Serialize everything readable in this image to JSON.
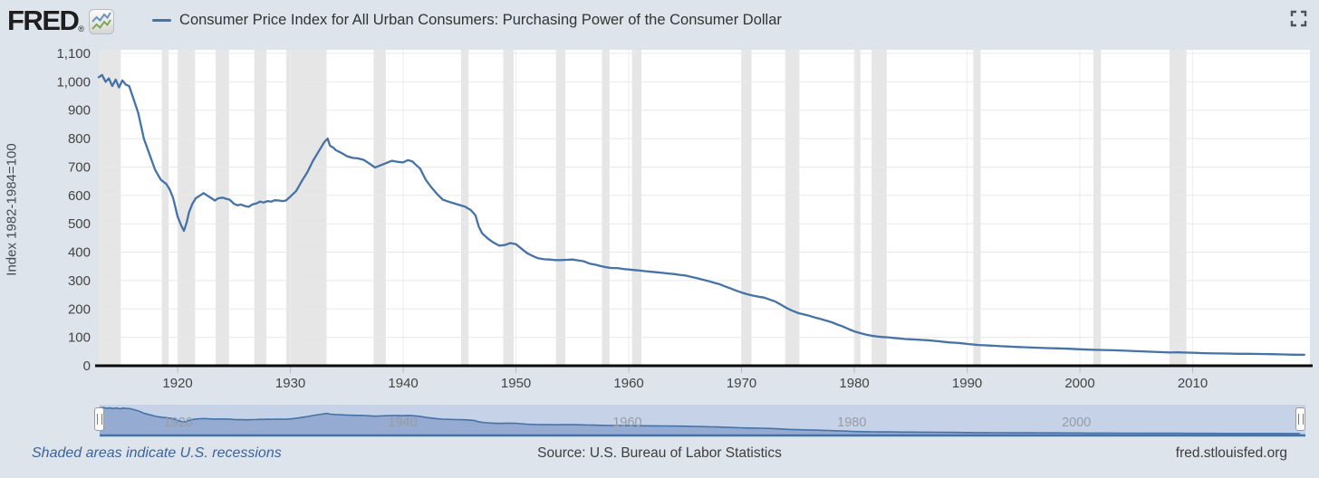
{
  "header": {
    "logo_text": "FRED",
    "registered_mark": "®",
    "title": "Consumer Price Index for All Urban Consumers: Purchasing Power of the Consumer Dollar"
  },
  "footer": {
    "note": "Shaded areas indicate U.S. recessions",
    "source": "Source: U.S. Bureau of Labor Statistics",
    "site": "fred.stlouisfed.org"
  },
  "chart_data": {
    "type": "line",
    "title": "Consumer Price Index for All Urban Consumers: Purchasing Power of the Consumer Dollar",
    "xlabel": "",
    "ylabel": "Index 1982-1984=100",
    "xlim": [
      1913,
      2020.4
    ],
    "ylim": [
      0,
      1100
    ],
    "grid": true,
    "legend_position": "top",
    "x_ticks": [
      1920,
      1930,
      1940,
      1950,
      1960,
      1970,
      1980,
      1990,
      2000,
      2010
    ],
    "y_ticks": [
      0,
      100,
      200,
      300,
      400,
      500,
      600,
      700,
      800,
      900,
      1000,
      1100
    ],
    "y_tick_labels": [
      "0",
      "100",
      "200",
      "300",
      "400",
      "500",
      "600",
      "700",
      "800",
      "900",
      "1,000",
      "1,100"
    ],
    "colors": {
      "line": "#4572a7",
      "recession": "#e6e6e6",
      "plot_bg": "#ffffff",
      "page_bg": "#dde4ec",
      "zero_line": "#0a0a0a",
      "h_grid": "#e8e8e8",
      "v_grid": "#ededed",
      "tick_text": "#444444",
      "slider_track": "#c5d2e8",
      "slider_area": "#8fa6cf",
      "slider_line": "#4572a7",
      "link_blue": "#3d6399"
    },
    "recessions": [
      [
        1913.0,
        1914.95
      ],
      [
        1918.6,
        1919.2
      ],
      [
        1920.04,
        1921.55
      ],
      [
        1923.37,
        1924.55
      ],
      [
        1926.79,
        1927.87
      ],
      [
        1929.62,
        1933.2
      ],
      [
        1937.37,
        1938.45
      ],
      [
        1945.12,
        1945.79
      ],
      [
        1948.87,
        1949.79
      ],
      [
        1953.54,
        1954.37
      ],
      [
        1957.62,
        1958.29
      ],
      [
        1960.29,
        1961.12
      ],
      [
        1969.95,
        1970.87
      ],
      [
        1973.87,
        1975.12
      ],
      [
        1980.04,
        1980.54
      ],
      [
        1981.54,
        1982.87
      ],
      [
        1990.54,
        1991.2
      ],
      [
        2001.2,
        2001.87
      ],
      [
        2007.95,
        2009.45
      ]
    ],
    "series": [
      {
        "name": "Consumer Price Index for All Urban Consumers: Purchasing Power of the Consumer Dollar",
        "points": [
          [
            1913,
            1016
          ],
          [
            1913.3,
            1024
          ],
          [
            1913.6,
            1000
          ],
          [
            1913.9,
            1012
          ],
          [
            1914.2,
            985
          ],
          [
            1914.5,
            1008
          ],
          [
            1914.8,
            980
          ],
          [
            1915.1,
            1005
          ],
          [
            1915.4,
            990
          ],
          [
            1915.7,
            985
          ],
          [
            1916,
            950
          ],
          [
            1916.5,
            890
          ],
          [
            1917,
            800
          ],
          [
            1917.5,
            745
          ],
          [
            1918,
            690
          ],
          [
            1918.5,
            655
          ],
          [
            1919,
            640
          ],
          [
            1919.3,
            620
          ],
          [
            1919.6,
            590
          ],
          [
            1920,
            525
          ],
          [
            1920.3,
            495
          ],
          [
            1920.55,
            475
          ],
          [
            1920.8,
            505
          ],
          [
            1921,
            540
          ],
          [
            1921.3,
            570
          ],
          [
            1921.6,
            590
          ],
          [
            1922,
            600
          ],
          [
            1922.3,
            608
          ],
          [
            1922.6,
            600
          ],
          [
            1923,
            590
          ],
          [
            1923.3,
            582
          ],
          [
            1923.6,
            590
          ],
          [
            1924,
            592
          ],
          [
            1924.3,
            588
          ],
          [
            1924.6,
            585
          ],
          [
            1925,
            570
          ],
          [
            1925.3,
            565
          ],
          [
            1925.6,
            568
          ],
          [
            1926,
            562
          ],
          [
            1926.3,
            560
          ],
          [
            1926.6,
            568
          ],
          [
            1927,
            572
          ],
          [
            1927.3,
            578
          ],
          [
            1927.6,
            575
          ],
          [
            1928,
            580
          ],
          [
            1928.3,
            578
          ],
          [
            1928.6,
            583
          ],
          [
            1929,
            582
          ],
          [
            1929.3,
            580
          ],
          [
            1929.6,
            582
          ],
          [
            1930,
            596
          ],
          [
            1930.5,
            615
          ],
          [
            1931,
            650
          ],
          [
            1931.5,
            682
          ],
          [
            1932,
            722
          ],
          [
            1932.5,
            755
          ],
          [
            1933,
            788
          ],
          [
            1933.3,
            800
          ],
          [
            1933.5,
            775
          ],
          [
            1933.8,
            768
          ],
          [
            1934,
            760
          ],
          [
            1934.5,
            750
          ],
          [
            1935,
            738
          ],
          [
            1935.5,
            732
          ],
          [
            1936,
            730
          ],
          [
            1936.5,
            725
          ],
          [
            1937,
            712
          ],
          [
            1937.5,
            698
          ],
          [
            1938,
            706
          ],
          [
            1938.5,
            714
          ],
          [
            1939,
            722
          ],
          [
            1939.5,
            718
          ],
          [
            1940,
            716
          ],
          [
            1940.4,
            724
          ],
          [
            1940.8,
            720
          ],
          [
            1941,
            712
          ],
          [
            1941.5,
            694
          ],
          [
            1942,
            655
          ],
          [
            1942.5,
            628
          ],
          [
            1943,
            605
          ],
          [
            1943.5,
            585
          ],
          [
            1944,
            578
          ],
          [
            1944.5,
            572
          ],
          [
            1945,
            566
          ],
          [
            1945.5,
            560
          ],
          [
            1946,
            548
          ],
          [
            1946.4,
            530
          ],
          [
            1946.7,
            490
          ],
          [
            1947,
            466
          ],
          [
            1947.5,
            448
          ],
          [
            1948,
            434
          ],
          [
            1948.5,
            423
          ],
          [
            1949,
            425
          ],
          [
            1949.5,
            432
          ],
          [
            1950,
            428
          ],
          [
            1950.5,
            412
          ],
          [
            1951,
            396
          ],
          [
            1951.5,
            386
          ],
          [
            1952,
            378
          ],
          [
            1952.5,
            375
          ],
          [
            1953,
            374
          ],
          [
            1953.5,
            372
          ],
          [
            1954,
            372
          ],
          [
            1954.5,
            373
          ],
          [
            1955,
            374
          ],
          [
            1955.5,
            371
          ],
          [
            1956,
            368
          ],
          [
            1956.5,
            360
          ],
          [
            1957,
            356
          ],
          [
            1957.5,
            351
          ],
          [
            1958,
            347
          ],
          [
            1958.5,
            344
          ],
          [
            1959,
            344
          ],
          [
            1959.5,
            341
          ],
          [
            1960,
            339
          ],
          [
            1960.5,
            337
          ],
          [
            1961,
            335
          ],
          [
            1961.5,
            333
          ],
          [
            1962,
            331
          ],
          [
            1962.5,
            329
          ],
          [
            1963,
            327
          ],
          [
            1963.5,
            325
          ],
          [
            1964,
            323
          ],
          [
            1964.5,
            320
          ],
          [
            1965,
            318
          ],
          [
            1965.5,
            313
          ],
          [
            1966,
            309
          ],
          [
            1966.5,
            304
          ],
          [
            1967,
            299
          ],
          [
            1967.5,
            293
          ],
          [
            1968,
            288
          ],
          [
            1968.5,
            280
          ],
          [
            1969,
            273
          ],
          [
            1969.5,
            265
          ],
          [
            1970,
            258
          ],
          [
            1970.5,
            252
          ],
          [
            1971,
            247
          ],
          [
            1971.5,
            243
          ],
          [
            1972,
            240
          ],
          [
            1972.5,
            233
          ],
          [
            1973,
            226
          ],
          [
            1973.5,
            215
          ],
          [
            1974,
            203
          ],
          [
            1974.5,
            194
          ],
          [
            1975,
            186
          ],
          [
            1975.5,
            181
          ],
          [
            1976,
            176
          ],
          [
            1976.5,
            170
          ],
          [
            1977,
            165
          ],
          [
            1977.5,
            159
          ],
          [
            1978,
            153
          ],
          [
            1978.5,
            145
          ],
          [
            1979,
            138
          ],
          [
            1979.5,
            129
          ],
          [
            1980,
            121
          ],
          [
            1980.5,
            115
          ],
          [
            1981,
            110
          ],
          [
            1981.5,
            106
          ],
          [
            1982,
            103
          ],
          [
            1982.5,
            101
          ],
          [
            1983,
            100
          ],
          [
            1983.5,
            98
          ],
          [
            1984,
            96
          ],
          [
            1984.5,
            94
          ],
          [
            1985,
            93
          ],
          [
            1985.5,
            92
          ],
          [
            1986,
            91
          ],
          [
            1986.5,
            90
          ],
          [
            1987,
            88
          ],
          [
            1987.5,
            86
          ],
          [
            1988,
            84
          ],
          [
            1988.5,
            82
          ],
          [
            1989,
            81
          ],
          [
            1989.5,
            79
          ],
          [
            1990,
            77
          ],
          [
            1990.5,
            75
          ],
          [
            1991,
            73
          ],
          [
            1991.5,
            72
          ],
          [
            1992,
            71
          ],
          [
            1992.5,
            70
          ],
          [
            1993,
            69
          ],
          [
            1993.5,
            68
          ],
          [
            1994,
            67
          ],
          [
            1994.5,
            66
          ],
          [
            1995,
            65.5
          ],
          [
            1996,
            63.7
          ],
          [
            1997,
            62.2
          ],
          [
            1998,
            61.3
          ],
          [
            1999,
            60.1
          ],
          [
            2000,
            58.1
          ],
          [
            2001,
            56.5
          ],
          [
            2002,
            55.6
          ],
          [
            2003,
            54.4
          ],
          [
            2004,
            53
          ],
          [
            2005,
            51.2
          ],
          [
            2006,
            49.6
          ],
          [
            2007,
            48.3
          ],
          [
            2008,
            46.5
          ],
          [
            2008.7,
            47.5
          ],
          [
            2009,
            46.8
          ],
          [
            2010,
            45.8
          ],
          [
            2011,
            44.4
          ],
          [
            2012,
            43.5
          ],
          [
            2013,
            42.9
          ],
          [
            2014,
            42.2
          ],
          [
            2015,
            42.1
          ],
          [
            2016,
            41.6
          ],
          [
            2017,
            40.7
          ],
          [
            2018,
            39.7
          ],
          [
            2019,
            39
          ],
          [
            2019.9,
            38.6
          ]
        ]
      }
    ],
    "slider": {
      "labels": [
        "1920",
        "1940",
        "1960",
        "1980",
        "2000"
      ],
      "label_years": [
        1920,
        1940,
        1960,
        1980,
        2000
      ]
    }
  }
}
